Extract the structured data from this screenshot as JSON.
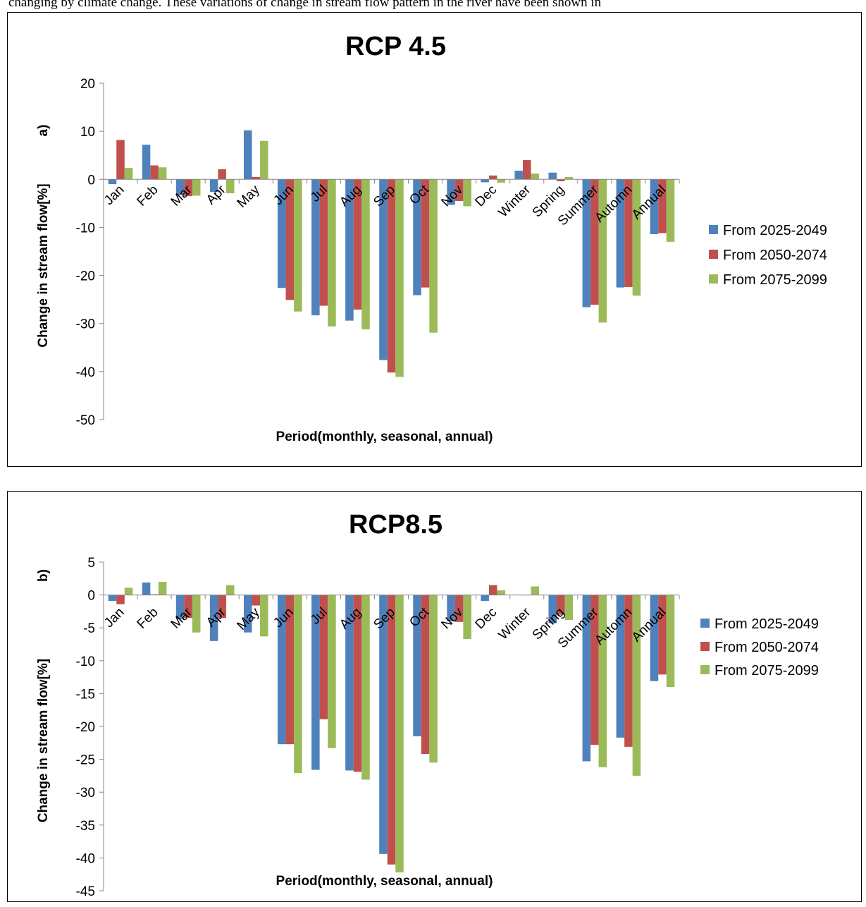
{
  "header_text": "changing by climate change. These variations of change in stream flow pattern in the river have been shown in",
  "chart_data": [
    {
      "type": "bar",
      "title": "RCP 4.5",
      "panel_label": "a)",
      "xlabel": "Period(monthly, seasonal, annual)",
      "ylabel": "Change in  stream flow[%]",
      "ylim": [
        -50,
        20
      ],
      "yticks": [
        20,
        10,
        0,
        -10,
        -20,
        -30,
        -40,
        -50
      ],
      "grid": false,
      "legend_position": "right",
      "categories": [
        "Jan",
        "Feb",
        "Mar",
        "Apr",
        "May",
        "Jun",
        "Jul",
        "Aug",
        "Sep",
        "Oct",
        "Nov",
        "Dec",
        "Winter",
        "Spring",
        "Summer",
        "Automn",
        "Annual"
      ],
      "series": [
        {
          "name": "From 2025-2049",
          "color": "#4f81bd",
          "values": [
            -1.0,
            7.2,
            -3.3,
            -2.6,
            10.2,
            -22.6,
            -28.3,
            -29.4,
            -37.6,
            -24.1,
            -5.3,
            -0.6,
            1.8,
            1.4,
            -26.6,
            -22.5,
            -11.4
          ]
        },
        {
          "name": "From 2050-2074",
          "color": "#c0504d",
          "values": [
            8.2,
            2.9,
            -3.5,
            2.1,
            0.5,
            -25.1,
            -26.3,
            -27.1,
            -40.2,
            -22.5,
            -4.5,
            0.8,
            4.0,
            -0.4,
            -26.1,
            -22.4,
            -11.2
          ]
        },
        {
          "name": "From 2075-2099",
          "color": "#9bbb59",
          "values": [
            2.4,
            2.5,
            -3.4,
            -2.9,
            8.0,
            -27.5,
            -30.6,
            -31.2,
            -41.1,
            -31.9,
            -5.6,
            -0.7,
            1.2,
            0.5,
            -29.8,
            -24.2,
            -13.0
          ]
        }
      ]
    },
    {
      "type": "bar",
      "title": "RCP8.5",
      "panel_label": "b)",
      "xlabel": "Period(monthly, seasonal, annual)",
      "ylabel": "Change in  stream flow[%]",
      "ylim": [
        -45,
        5
      ],
      "yticks": [
        5,
        0,
        -5,
        -10,
        -15,
        -20,
        -25,
        -30,
        -35,
        -40,
        -45
      ],
      "grid": false,
      "legend_position": "right",
      "categories": [
        "Jan",
        "Feb",
        "Mar",
        "Apr",
        "May",
        "Jun",
        "Jul",
        "Aug",
        "Sep",
        "Oct",
        "Nov",
        "Dec",
        "Winter",
        "Spring",
        "Summer",
        "Automn",
        "Annual"
      ],
      "series": [
        {
          "name": "From 2025-2049",
          "color": "#4f81bd",
          "values": [
            -0.9,
            1.9,
            -3.7,
            -7.0,
            -5.7,
            -22.7,
            -26.6,
            -26.7,
            -39.4,
            -21.5,
            -4.0,
            -0.9,
            0.0,
            -4.3,
            -25.3,
            -21.7,
            -13.1
          ]
        },
        {
          "name": "From 2050-2074",
          "color": "#c0504d",
          "values": [
            -1.4,
            0.1,
            -3.5,
            -3.5,
            -1.6,
            -22.7,
            -18.9,
            -26.9,
            -41.0,
            -24.2,
            -4.1,
            1.5,
            0.0,
            -3.0,
            -22.8,
            -23.1,
            -12.1
          ]
        },
        {
          "name": "From 2075-2099",
          "color": "#9bbb59",
          "values": [
            1.1,
            2.0,
            -5.7,
            1.5,
            -6.3,
            -27.1,
            -23.3,
            -28.1,
            -42.2,
            -25.5,
            -6.7,
            0.7,
            1.3,
            -3.8,
            -26.2,
            -27.5,
            -14.0
          ]
        }
      ]
    }
  ]
}
